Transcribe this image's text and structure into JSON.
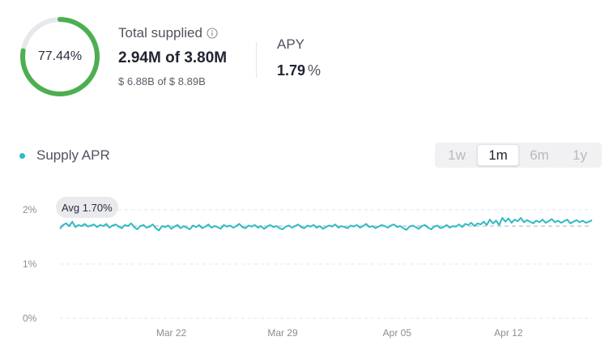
{
  "colors": {
    "ring_fill": "#4caf50",
    "ring_track": "#e8e8ec",
    "series": "#2ebac6",
    "avg_line": "#c8cad0",
    "grid": "#e3e4e8"
  },
  "summary": {
    "utilization_label": "77.44%",
    "utilization_fraction": 0.7744,
    "supplied_title": "Total supplied",
    "supplied_tokens": "2.94M",
    "supplied_of": "of",
    "supplied_cap": "3.80M",
    "supplied_usd_value": "$ 6.88B",
    "supplied_usd_of": "of",
    "supplied_usd_cap": "$ 8.89B",
    "apy_title": "APY",
    "apy_value": "1.79",
    "apy_unit": "%"
  },
  "legend": {
    "label": "Supply APR"
  },
  "range": {
    "options": [
      "1w",
      "1m",
      "6m",
      "1y"
    ],
    "selected": "1m"
  },
  "avg_label": "Avg 1.70%",
  "chart_data": {
    "type": "line",
    "title": "",
    "series": [
      {
        "name": "Supply APR",
        "values": [
          1.65,
          1.72,
          1.75,
          1.7,
          1.78,
          1.68,
          1.72,
          1.7,
          1.74,
          1.69,
          1.71,
          1.73,
          1.68,
          1.72,
          1.7,
          1.74,
          1.67,
          1.71,
          1.73,
          1.69,
          1.66,
          1.72,
          1.7,
          1.75,
          1.68,
          1.64,
          1.7,
          1.72,
          1.67,
          1.69,
          1.73,
          1.66,
          1.62,
          1.7,
          1.68,
          1.71,
          1.65,
          1.69,
          1.72,
          1.66,
          1.7,
          1.67,
          1.64,
          1.71,
          1.68,
          1.72,
          1.66,
          1.69,
          1.73,
          1.67,
          1.7,
          1.68,
          1.65,
          1.72,
          1.69,
          1.71,
          1.67,
          1.7,
          1.74,
          1.68,
          1.66,
          1.71,
          1.69,
          1.72,
          1.67,
          1.7,
          1.65,
          1.69,
          1.72,
          1.68,
          1.7,
          1.66,
          1.64,
          1.69,
          1.71,
          1.67,
          1.7,
          1.73,
          1.68,
          1.66,
          1.71,
          1.69,
          1.72,
          1.67,
          1.7,
          1.65,
          1.68,
          1.71,
          1.69,
          1.73,
          1.67,
          1.7,
          1.68,
          1.66,
          1.71,
          1.69,
          1.72,
          1.67,
          1.7,
          1.74,
          1.68,
          1.7,
          1.66,
          1.69,
          1.72,
          1.7,
          1.67,
          1.71,
          1.73,
          1.68,
          1.7,
          1.66,
          1.63,
          1.69,
          1.71,
          1.68,
          1.65,
          1.7,
          1.72,
          1.67,
          1.64,
          1.69,
          1.71,
          1.66,
          1.68,
          1.72,
          1.67,
          1.7,
          1.69,
          1.73,
          1.68,
          1.74,
          1.72,
          1.76,
          1.7,
          1.75,
          1.73,
          1.78,
          1.72,
          1.82,
          1.75,
          1.8,
          1.72,
          1.85,
          1.78,
          1.84,
          1.76,
          1.82,
          1.79,
          1.85,
          1.77,
          1.81,
          1.78,
          1.75,
          1.8,
          1.77,
          1.82,
          1.76,
          1.79,
          1.83,
          1.77,
          1.8,
          1.76,
          1.79,
          1.82,
          1.75,
          1.78,
          1.81,
          1.77,
          1.8,
          1.76,
          1.78,
          1.81
        ]
      }
    ],
    "average": 1.7,
    "ylim": [
      0,
      2
    ],
    "y_ticks": [
      {
        "value": 2,
        "label": "2%"
      },
      {
        "value": 1,
        "label": "1%"
      },
      {
        "value": 0,
        "label": "0%"
      }
    ],
    "x_ticks": [
      {
        "index": 36,
        "label": "Mar 22"
      },
      {
        "index": 72,
        "label": "Mar 29"
      },
      {
        "index": 109,
        "label": "Apr 05"
      },
      {
        "index": 145,
        "label": "Apr 12"
      }
    ],
    "grid": true,
    "xlabel": "",
    "ylabel": ""
  }
}
